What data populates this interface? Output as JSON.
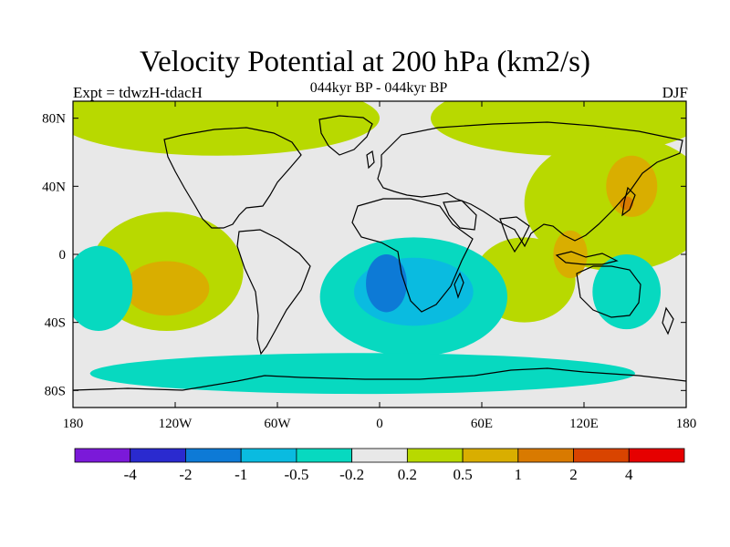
{
  "title": "Velocity Potential at 200 hPa (km2/s)",
  "experiment_label": "Expt = tdwzH-tdacH",
  "period_label": "044kyr BP - 044kyr BP",
  "season_label": "DJF",
  "axes": {
    "x_ticks": [
      {
        "lon": -180,
        "label": "180"
      },
      {
        "lon": -120,
        "label": "120W"
      },
      {
        "lon": -60,
        "label": "60W"
      },
      {
        "lon": 0,
        "label": "0"
      },
      {
        "lon": 60,
        "label": "60E"
      },
      {
        "lon": 120,
        "label": "120E"
      },
      {
        "lon": 180,
        "label": "180"
      }
    ],
    "y_ticks": [
      {
        "lat": 80,
        "label": "80N"
      },
      {
        "lat": 40,
        "label": "40N"
      },
      {
        "lat": 0,
        "label": "0"
      },
      {
        "lat": -40,
        "label": "40S"
      },
      {
        "lat": -80,
        "label": "80S"
      }
    ],
    "lon_range": [
      -180,
      180
    ],
    "lat_range": [
      -90,
      90
    ]
  },
  "colorbar": {
    "colors": [
      "#7b19d9",
      "#2a2acf",
      "#0d7ad6",
      "#0abbe0",
      "#07d9c0",
      "#e8e8e8",
      "#b8d900",
      "#d9ae00",
      "#d97a00",
      "#d94400",
      "#e60000"
    ],
    "labels": [
      "-4",
      "-2",
      "-1",
      "-0.5",
      "-0.2",
      "0.2",
      "0.5",
      "1",
      "2",
      "4"
    ]
  },
  "chart_data": {
    "type": "heatmap",
    "variable": "Velocity Potential at 200 hPa",
    "units": "km2/s",
    "background_class": 0.2,
    "regions": [
      {
        "lon": -95,
        "lat": 80,
        "rx": 95,
        "ry": 22,
        "class": 0.5
      },
      {
        "lon": 110,
        "lat": 80,
        "rx": 80,
        "ry": 22,
        "class": 0.5
      },
      {
        "lon": 140,
        "lat": 30,
        "rx": 55,
        "ry": 40,
        "class": 0.5
      },
      {
        "lon": 85,
        "lat": -15,
        "rx": 30,
        "ry": 25,
        "class": 0.5
      },
      {
        "lon": -125,
        "lat": -10,
        "rx": 45,
        "ry": 35,
        "class": 0.5
      },
      {
        "lon": -125,
        "lat": -20,
        "rx": 25,
        "ry": 16,
        "class": 1
      },
      {
        "lon": 148,
        "lat": 40,
        "rx": 15,
        "ry": 18,
        "class": 1
      },
      {
        "lon": 112,
        "lat": 0,
        "rx": 10,
        "ry": 14,
        "class": 1
      },
      {
        "lon": 145,
        "lat": 30,
        "rx": 4,
        "ry": 4,
        "class": 2
      },
      {
        "lon": 20,
        "lat": -25,
        "rx": 55,
        "ry": 35,
        "class": -0.2
      },
      {
        "lon": -10,
        "lat": -70,
        "rx": 160,
        "ry": 12,
        "class": -0.2
      },
      {
        "lon": 145,
        "lat": -22,
        "rx": 20,
        "ry": 22,
        "class": -0.2
      },
      {
        "lon": -165,
        "lat": -20,
        "rx": 20,
        "ry": 25,
        "class": -0.2
      },
      {
        "lon": 20,
        "lat": -22,
        "rx": 35,
        "ry": 20,
        "class": -0.5
      },
      {
        "lon": 4,
        "lat": -17,
        "rx": 12,
        "ry": 17,
        "class": -1
      }
    ]
  }
}
